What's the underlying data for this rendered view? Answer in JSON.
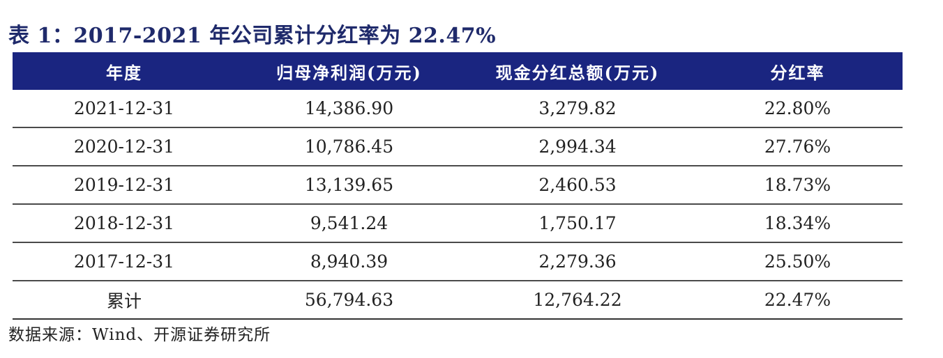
{
  "title": "表 1：2017-2021 年公司累计分红率为 22.47%",
  "table": {
    "headers": [
      "年度",
      "归母净利润(万元)",
      "现金分红总额(万元)",
      "分红率"
    ],
    "rows": [
      [
        "2021-12-31",
        "14,386.90",
        "3,279.82",
        "22.80%"
      ],
      [
        "2020-12-31",
        "10,786.45",
        "2,994.34",
        "27.76%"
      ],
      [
        "2019-12-31",
        "13,139.65",
        "2,460.53",
        "18.73%"
      ],
      [
        "2018-12-31",
        "9,541.24",
        "1,750.17",
        "18.34%"
      ],
      [
        "2017-12-31",
        "8,940.39",
        "2,279.36",
        "25.50%"
      ],
      [
        "累计",
        "56,794.63",
        "12,764.22",
        "22.47%"
      ]
    ]
  },
  "source": "数据来源：Wind、开源证券研究所",
  "colors": {
    "header_bg": "#1a2580",
    "title_color": "#1f2a6b"
  }
}
